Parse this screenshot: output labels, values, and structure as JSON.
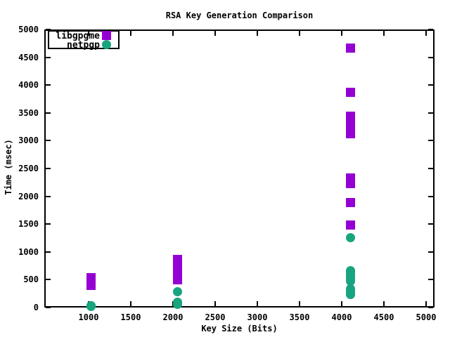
{
  "window": {
    "background": "#ffffff",
    "text_color": "#000000",
    "axis_color": "#000000"
  },
  "chart_data": {
    "type": "scatter",
    "title": "RSA Key Generation Comparison",
    "xlabel": "Key Size (Bits)",
    "ylabel": "Time (msec)",
    "xlim": [
      475,
      5100
    ],
    "ylim": [
      0,
      5000
    ],
    "xticks": [
      1000,
      1500,
      2000,
      2500,
      3000,
      3500,
      4000,
      4500,
      5000
    ],
    "yticks": [
      0,
      500,
      1000,
      1500,
      2000,
      2500,
      3000,
      3500,
      4000,
      4500,
      5000
    ],
    "grid": false,
    "legend_position": "top-left-inside",
    "series": [
      {
        "name": "libgpgme",
        "marker": "square",
        "color": "#9400d3",
        "points": [
          [
            1024,
            400
          ],
          [
            1024,
            430
          ],
          [
            1024,
            460
          ],
          [
            1024,
            490
          ],
          [
            1024,
            520
          ],
          [
            1024,
            549
          ],
          [
            2048,
            500
          ],
          [
            2048,
            560
          ],
          [
            2048,
            620
          ],
          [
            2048,
            680
          ],
          [
            2048,
            740
          ],
          [
            2048,
            800
          ],
          [
            2048,
            865
          ],
          [
            4096,
            1490
          ],
          [
            4096,
            1890
          ],
          [
            4096,
            2230
          ],
          [
            4096,
            2280
          ],
          [
            4096,
            2330
          ],
          [
            4096,
            3130
          ],
          [
            4096,
            3210
          ],
          [
            4096,
            3290
          ],
          [
            4096,
            3370
          ],
          [
            4096,
            3449
          ],
          [
            4096,
            3880
          ],
          [
            4096,
            4670
          ]
        ]
      },
      {
        "name": "netpgp",
        "marker": "circle",
        "color": "#18a47e",
        "points": [
          [
            1024,
            31
          ],
          [
            1024,
            36
          ],
          [
            1024,
            40
          ],
          [
            1024,
            44
          ],
          [
            2048,
            57
          ],
          [
            2048,
            70
          ],
          [
            2048,
            82
          ],
          [
            2048,
            95
          ],
          [
            2048,
            107
          ],
          [
            2048,
            290
          ],
          [
            4096,
            234
          ],
          [
            4096,
            262
          ],
          [
            4096,
            290
          ],
          [
            4096,
            318
          ],
          [
            4096,
            347
          ],
          [
            4096,
            486
          ],
          [
            4096,
            524
          ],
          [
            4096,
            562
          ],
          [
            4096,
            600
          ],
          [
            4096,
            638
          ],
          [
            4096,
            675
          ],
          [
            4096,
            1265
          ]
        ]
      }
    ]
  }
}
